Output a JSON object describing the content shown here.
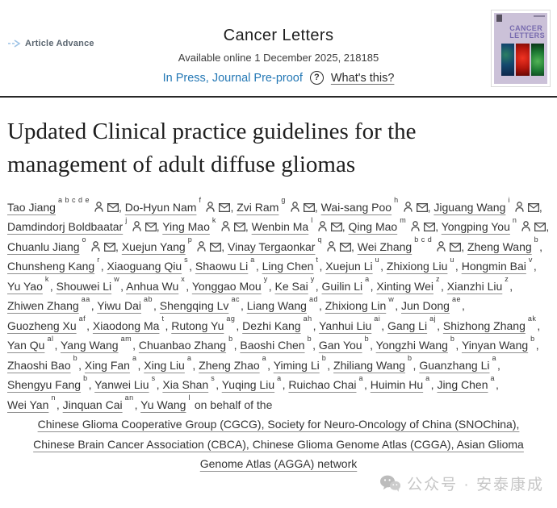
{
  "header": {
    "brand": "Article Advance",
    "journal": "Cancer Letters",
    "availability": "Available online 1 December 2025, 218185",
    "status_link": "In Press, Journal Pre-proof",
    "help_glyph": "?",
    "whats_this": "What's this?"
  },
  "cover": {
    "title_line1": "CANCER",
    "title_line2": "LETTERS"
  },
  "article": {
    "title": "Updated Clinical practice guidelines for the management of adult diffuse gliomas"
  },
  "authors": [
    {
      "name": "Tao Jiang",
      "sup": "a b c d e",
      "icons": true
    },
    {
      "name": "Do-Hyun Nam",
      "sup": "f",
      "icons": true
    },
    {
      "name": "Zvi Ram",
      "sup": "g",
      "icons": true
    },
    {
      "name": "Wai-sang Poo",
      "sup": "h",
      "icons": true
    },
    {
      "name": "Jiguang Wang",
      "sup": "i",
      "icons": true
    },
    {
      "name": "Damdindorj Boldbaatar",
      "sup": "j",
      "icons": true
    },
    {
      "name": "Ying Mao",
      "sup": "k",
      "icons": true
    },
    {
      "name": "Wenbin Ma",
      "sup": "l",
      "icons": true
    },
    {
      "name": "Qing Mao",
      "sup": "m",
      "icons": true
    },
    {
      "name": "Yongping You",
      "sup": "n",
      "icons": true
    },
    {
      "name": "Chuanlu Jiang",
      "sup": "o",
      "icons": true
    },
    {
      "name": "Xuejun Yang",
      "sup": "p",
      "icons": true
    },
    {
      "name": "Vinay Tergaonkar",
      "sup": "q",
      "icons": true
    },
    {
      "name": "Wei Zhang",
      "sup": "b c d",
      "icons": true
    },
    {
      "name": "Zheng Wang",
      "sup": "b",
      "icons": false
    },
    {
      "name": "Chunsheng Kang",
      "sup": "r",
      "icons": false
    },
    {
      "name": "Xiaoguang Qiu",
      "sup": "s",
      "icons": false
    },
    {
      "name": "Shaowu Li",
      "sup": "a",
      "icons": false
    },
    {
      "name": "Ling Chen",
      "sup": "t",
      "icons": false
    },
    {
      "name": "Xuejun Li",
      "sup": "u",
      "icons": false
    },
    {
      "name": "Zhixiong Liu",
      "sup": "u",
      "icons": false
    },
    {
      "name": "Hongmin Bai",
      "sup": "v",
      "icons": false
    },
    {
      "name": "Yu Yao",
      "sup": "k",
      "icons": false
    },
    {
      "name": "Shouwei Li",
      "sup": "w",
      "icons": false
    },
    {
      "name": "Anhua Wu",
      "sup": "x",
      "icons": false
    },
    {
      "name": "Yonggao Mou",
      "sup": "y",
      "icons": false
    },
    {
      "name": "Ke Sai",
      "sup": "y",
      "icons": false
    },
    {
      "name": "Guilin Li",
      "sup": "a",
      "icons": false
    },
    {
      "name": "Xinting Wei",
      "sup": "z",
      "icons": false
    },
    {
      "name": "Xianzhi Liu",
      "sup": "z",
      "icons": false
    },
    {
      "name": "Zhiwen Zhang",
      "sup": "aa",
      "icons": false
    },
    {
      "name": "Yiwu Dai",
      "sup": "ab",
      "icons": false
    },
    {
      "name": "Shengqing Lv",
      "sup": "ac",
      "icons": false
    },
    {
      "name": "Liang Wang",
      "sup": "ad",
      "icons": false
    },
    {
      "name": "Zhixiong Lin",
      "sup": "w",
      "icons": false
    },
    {
      "name": "Jun Dong",
      "sup": "ae",
      "icons": false
    },
    {
      "name": "Guozheng Xu",
      "sup": "af",
      "icons": false
    },
    {
      "name": "Xiaodong Ma",
      "sup": "t",
      "icons": false
    },
    {
      "name": "Rutong Yu",
      "sup": "ag",
      "icons": false
    },
    {
      "name": "Dezhi Kang",
      "sup": "ah",
      "icons": false
    },
    {
      "name": "Yanhui Liu",
      "sup": "ai",
      "icons": false
    },
    {
      "name": "Gang Li",
      "sup": "aj",
      "icons": false
    },
    {
      "name": "Shizhong Zhang",
      "sup": "ak",
      "icons": false
    },
    {
      "name": "Yan Qu",
      "sup": "al",
      "icons": false
    },
    {
      "name": "Yang Wang",
      "sup": "am",
      "icons": false
    },
    {
      "name": "Chuanbao Zhang",
      "sup": "b",
      "icons": false
    },
    {
      "name": "Baoshi Chen",
      "sup": "b",
      "icons": false
    },
    {
      "name": "Gan You",
      "sup": "b",
      "icons": false
    },
    {
      "name": "Yongzhi Wang",
      "sup": "b",
      "icons": false
    },
    {
      "name": "Yinyan Wang",
      "sup": "b",
      "icons": false
    },
    {
      "name": "Zhaoshi Bao",
      "sup": "b",
      "icons": false
    },
    {
      "name": "Xing Fan",
      "sup": "a",
      "icons": false
    },
    {
      "name": "Xing Liu",
      "sup": "a",
      "icons": false
    },
    {
      "name": "Zheng Zhao",
      "sup": "a",
      "icons": false
    },
    {
      "name": "Yiming Li",
      "sup": "b",
      "icons": false
    },
    {
      "name": "Zhiliang Wang",
      "sup": "b",
      "icons": false
    },
    {
      "name": "Guanzhang Li",
      "sup": "a",
      "icons": false
    },
    {
      "name": "Shengyu Fang",
      "sup": "b",
      "icons": false
    },
    {
      "name": "Yanwei Liu",
      "sup": "s",
      "icons": false
    },
    {
      "name": "Xia Shan",
      "sup": "s",
      "icons": false
    },
    {
      "name": "Yuqing Liu",
      "sup": "a",
      "icons": false
    },
    {
      "name": "Ruichao Chai",
      "sup": "a",
      "icons": false
    },
    {
      "name": "Huimin Hu",
      "sup": "a",
      "icons": false
    },
    {
      "name": "Jing Chen",
      "sup": "a",
      "icons": false
    },
    {
      "name": "Wei Yan",
      "sup": "n",
      "icons": false
    },
    {
      "name": "Jinquan Cai",
      "sup": "an",
      "icons": false
    },
    {
      "name": "Yu Wang",
      "sup": "l",
      "icons": false
    }
  ],
  "on_behalf": "on behalf of the",
  "groups": "Chinese Glioma Cooperative Group (CGCG), Society for Neuro-Oncology of China (SNOChina), Chinese Brain Cancer Association (CBCA), Chinese Glioma Genome Atlas (CGGA), Asian Glioma Genome Atlas (AGGA) network",
  "watermark": {
    "text": "公众号 · 安泰康成"
  },
  "icons": {
    "author_profile": "person-icon",
    "author_email": "envelope-icon",
    "help": "question-mark-icon",
    "brand": "dashed-arrow-icon",
    "watermark": "wechat-icon"
  },
  "colors": {
    "link_blue": "#2478b5",
    "text_dark": "#333333",
    "underline_gray": "#8f8f8f",
    "divider_dark": "#282828",
    "cover_lavender": "#cbc1d8",
    "cover_purple": "#776aae",
    "watermark_gray": "#c6c6c6"
  }
}
